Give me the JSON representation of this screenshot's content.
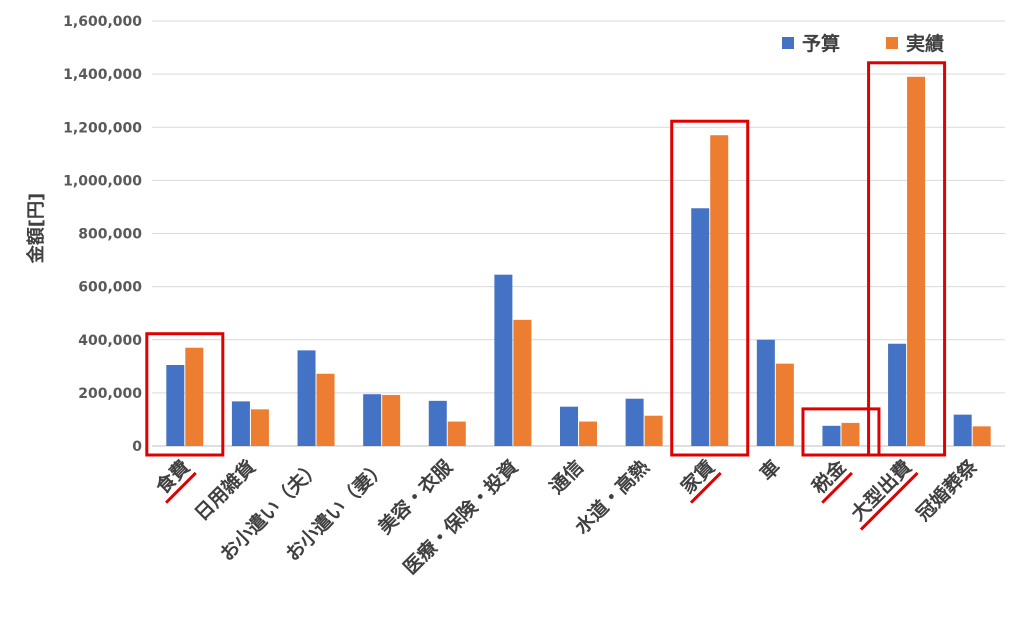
{
  "chart_data": {
    "type": "bar",
    "ylabel": "金額[円]",
    "ylim": [
      0,
      1600000
    ],
    "yticks": [
      0,
      200000,
      400000,
      600000,
      800000,
      1000000,
      1200000,
      1400000,
      1600000
    ],
    "ytick_labels": [
      "0",
      "200,000",
      "400,000",
      "600,000",
      "800,000",
      "1,000,000",
      "1,200,000",
      "1,400,000",
      "1,600,000"
    ],
    "categories": [
      "食費",
      "日用雑貨",
      "お小遣い（夫）",
      "お小遣い（妻）",
      "美容・衣服",
      "医療・保険・投資",
      "通信",
      "水道・高熱",
      "家賃",
      "車",
      "税金",
      "大型出費",
      "冠婚葬祭"
    ],
    "series": [
      {
        "name": "予算",
        "color": "#4472C4",
        "values": [
          305000,
          168000,
          360000,
          195000,
          170000,
          645000,
          148000,
          178000,
          895000,
          400000,
          76000,
          385000,
          118000
        ]
      },
      {
        "name": "実績",
        "color": "#ED7D31",
        "values": [
          370000,
          138000,
          272000,
          192000,
          92000,
          475000,
          92000,
          114000,
          1170000,
          310000,
          87000,
          1390000,
          74000
        ]
      }
    ],
    "legend_position": "top-right",
    "grid": true,
    "highlight_color": "#E00000",
    "highlighted_groups": [
      [
        "食費"
      ],
      [
        "家賃"
      ],
      [
        "税金"
      ],
      [
        "大型出費"
      ]
    ],
    "underlined_categories": [
      "食費",
      "家賃",
      "税金",
      "大型出費"
    ]
  }
}
